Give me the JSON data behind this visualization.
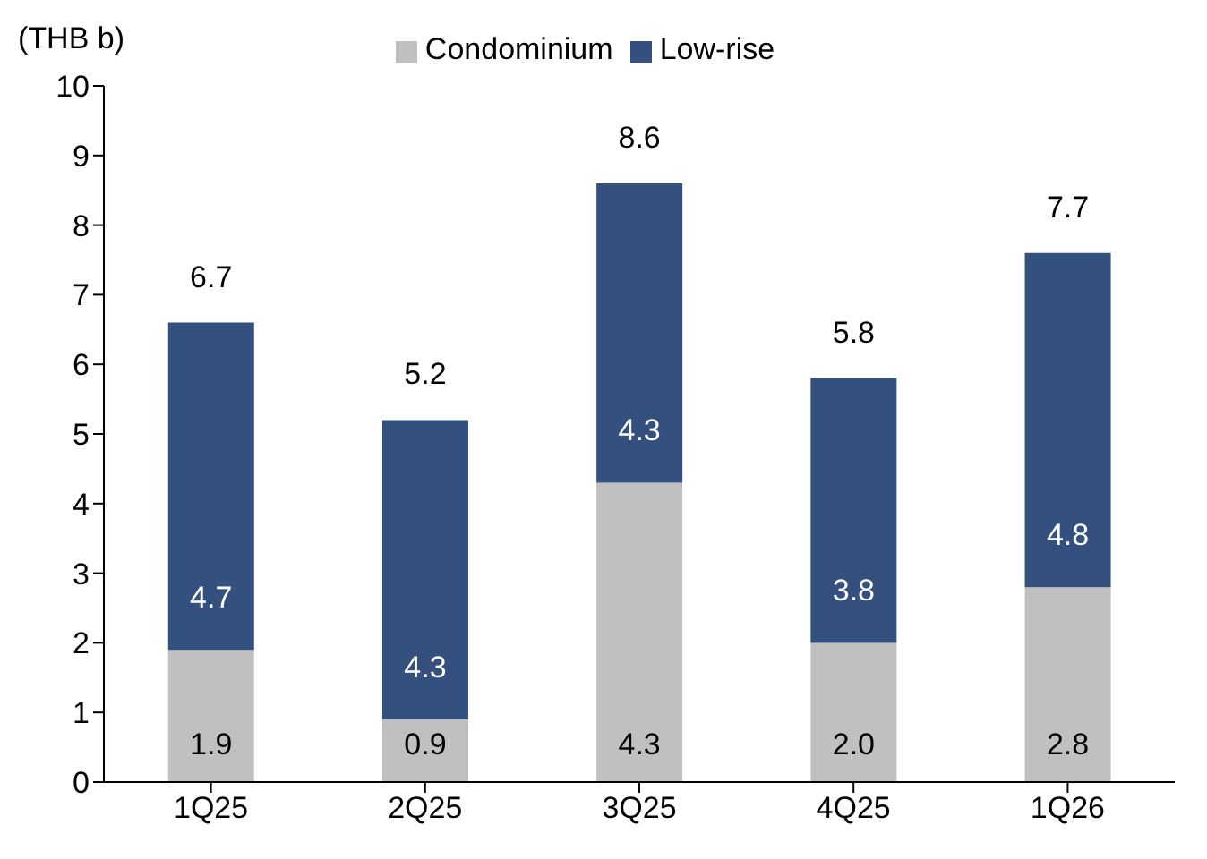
{
  "chart_data": {
    "type": "bar",
    "stacked": true,
    "ylabel": "(THB b)",
    "categories": [
      "1Q25",
      "2Q25",
      "3Q25",
      "4Q25",
      "1Q26"
    ],
    "series": [
      {
        "name": "Condominium",
        "color": "#c0c0c0",
        "values": [
          1.9,
          0.9,
          4.3,
          2.0,
          2.8
        ],
        "value_labels": [
          "1.9",
          "0.9",
          "4.3",
          "2.0",
          "2.8"
        ]
      },
      {
        "name": "Low-rise",
        "color": "#34507e",
        "values": [
          4.7,
          4.3,
          4.3,
          3.8,
          4.8
        ],
        "value_labels": [
          "4.7",
          "4.3",
          "4.3",
          "3.8",
          "4.8"
        ]
      }
    ],
    "totals": [
      "6.7",
      "5.2",
      "8.6",
      "5.8",
      "7.7"
    ],
    "ylim": [
      0,
      10
    ],
    "yticks": [
      0,
      1,
      2,
      3,
      4,
      5,
      6,
      7,
      8,
      9,
      10
    ],
    "legend": "top"
  }
}
